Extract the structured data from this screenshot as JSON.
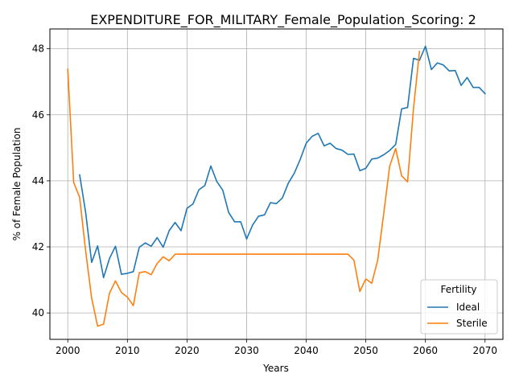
{
  "chart_data": {
    "type": "line",
    "title": "EXPENDITURE_FOR_MILITARY_Female_Population_Scoring: 2",
    "xlabel": "Years",
    "ylabel": "% of Female Population",
    "xlim": [
      1997,
      2073
    ],
    "ylim": [
      39.2,
      48.6
    ],
    "xticks": [
      2000,
      2010,
      2020,
      2030,
      2040,
      2050,
      2060,
      2070
    ],
    "yticks": [
      40,
      42,
      44,
      46,
      48
    ],
    "grid": true,
    "legend": {
      "title": "Fertility",
      "placement": "lower-right"
    },
    "series": [
      {
        "name": "Ideal",
        "color": "#1f77b4",
        "x": [
          2002,
          2003,
          2004,
          2005,
          2006,
          2007,
          2008,
          2009,
          2010,
          2011,
          2012,
          2013,
          2014,
          2015,
          2016,
          2017,
          2018,
          2019,
          2020,
          2021,
          2022,
          2023,
          2024,
          2025,
          2026,
          2027,
          2028,
          2029,
          2030,
          2031,
          2032,
          2033,
          2034,
          2035,
          2036,
          2037,
          2038,
          2039,
          2040,
          2041,
          2042,
          2043,
          2044,
          2045,
          2046,
          2047,
          2048,
          2049,
          2050,
          2051,
          2052,
          2053,
          2054,
          2055,
          2056,
          2057,
          2058,
          2059,
          2060,
          2061,
          2062,
          2063,
          2064,
          2065,
          2066,
          2067,
          2068,
          2069,
          2070
        ],
        "values": [
          44.18,
          43.05,
          41.53,
          42.03,
          41.07,
          41.65,
          42.02,
          41.17,
          41.2,
          41.25,
          41.99,
          42.12,
          42.02,
          42.28,
          41.99,
          42.49,
          42.74,
          42.49,
          43.17,
          43.3,
          43.73,
          43.86,
          44.45,
          43.98,
          43.72,
          43.04,
          42.76,
          42.76,
          42.24,
          42.66,
          42.93,
          42.97,
          43.34,
          43.31,
          43.48,
          43.93,
          44.23,
          44.65,
          45.14,
          45.35,
          45.44,
          45.06,
          45.14,
          44.98,
          44.93,
          44.8,
          44.81,
          44.31,
          44.38,
          44.66,
          44.69,
          44.79,
          44.92,
          45.1,
          46.18,
          46.22,
          47.71,
          47.65,
          48.08,
          47.37,
          47.57,
          47.51,
          47.33,
          47.34,
          46.89,
          47.13,
          46.83,
          46.83,
          46.64
        ]
      },
      {
        "name": "Sterile",
        "color": "#ff7f0e",
        "x": [
          2000,
          2001,
          2002,
          2003,
          2004,
          2005,
          2006,
          2007,
          2008,
          2009,
          2010,
          2011,
          2012,
          2013,
          2014,
          2015,
          2016,
          2017,
          2018,
          2019,
          2020,
          2021,
          2022,
          2023,
          2024,
          2025,
          2026,
          2027,
          2028,
          2029,
          2030,
          2031,
          2032,
          2033,
          2034,
          2035,
          2036,
          2037,
          2038,
          2039,
          2040,
          2041,
          2042,
          2043,
          2044,
          2045,
          2046,
          2047,
          2048,
          2049,
          2050,
          2051,
          2052,
          2053,
          2054,
          2055,
          2056,
          2057,
          2058,
          2059
        ],
        "values": [
          47.38,
          43.95,
          43.5,
          41.88,
          40.45,
          39.6,
          39.66,
          40.6,
          40.97,
          40.62,
          40.48,
          40.22,
          41.22,
          41.25,
          41.16,
          41.5,
          41.7,
          41.58,
          41.78,
          41.78,
          41.78,
          41.78,
          41.78,
          41.78,
          41.78,
          41.78,
          41.78,
          41.78,
          41.78,
          41.78,
          41.78,
          41.78,
          41.78,
          41.78,
          41.78,
          41.78,
          41.78,
          41.78,
          41.78,
          41.78,
          41.78,
          41.78,
          41.78,
          41.78,
          41.78,
          41.78,
          41.78,
          41.78,
          41.6,
          40.65,
          41.03,
          40.9,
          41.6,
          43.0,
          44.45,
          44.98,
          44.15,
          43.97,
          46.2,
          47.92
        ]
      }
    ]
  }
}
